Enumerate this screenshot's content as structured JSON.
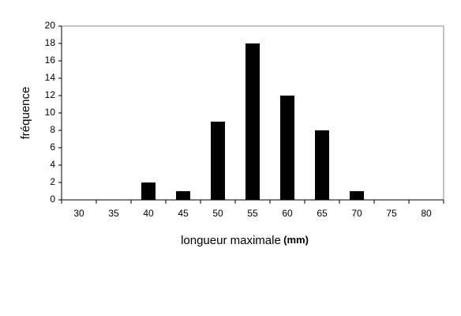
{
  "chart_data": {
    "type": "bar",
    "x_label": "longueur maximale",
    "x_label_unit": "(mm)",
    "y_label": "fréquence",
    "categories": [
      "30",
      "35",
      "40",
      "45",
      "50",
      "55",
      "60",
      "65",
      "70",
      "75",
      "80"
    ],
    "values": [
      0,
      0,
      2,
      1,
      9,
      18,
      12,
      8,
      1,
      0,
      0
    ],
    "color": "#000000",
    "ylim": [
      0,
      20
    ],
    "yticks": [
      0,
      2,
      4,
      6,
      8,
      10,
      12,
      14,
      16,
      18,
      20
    ],
    "grid": false
  }
}
